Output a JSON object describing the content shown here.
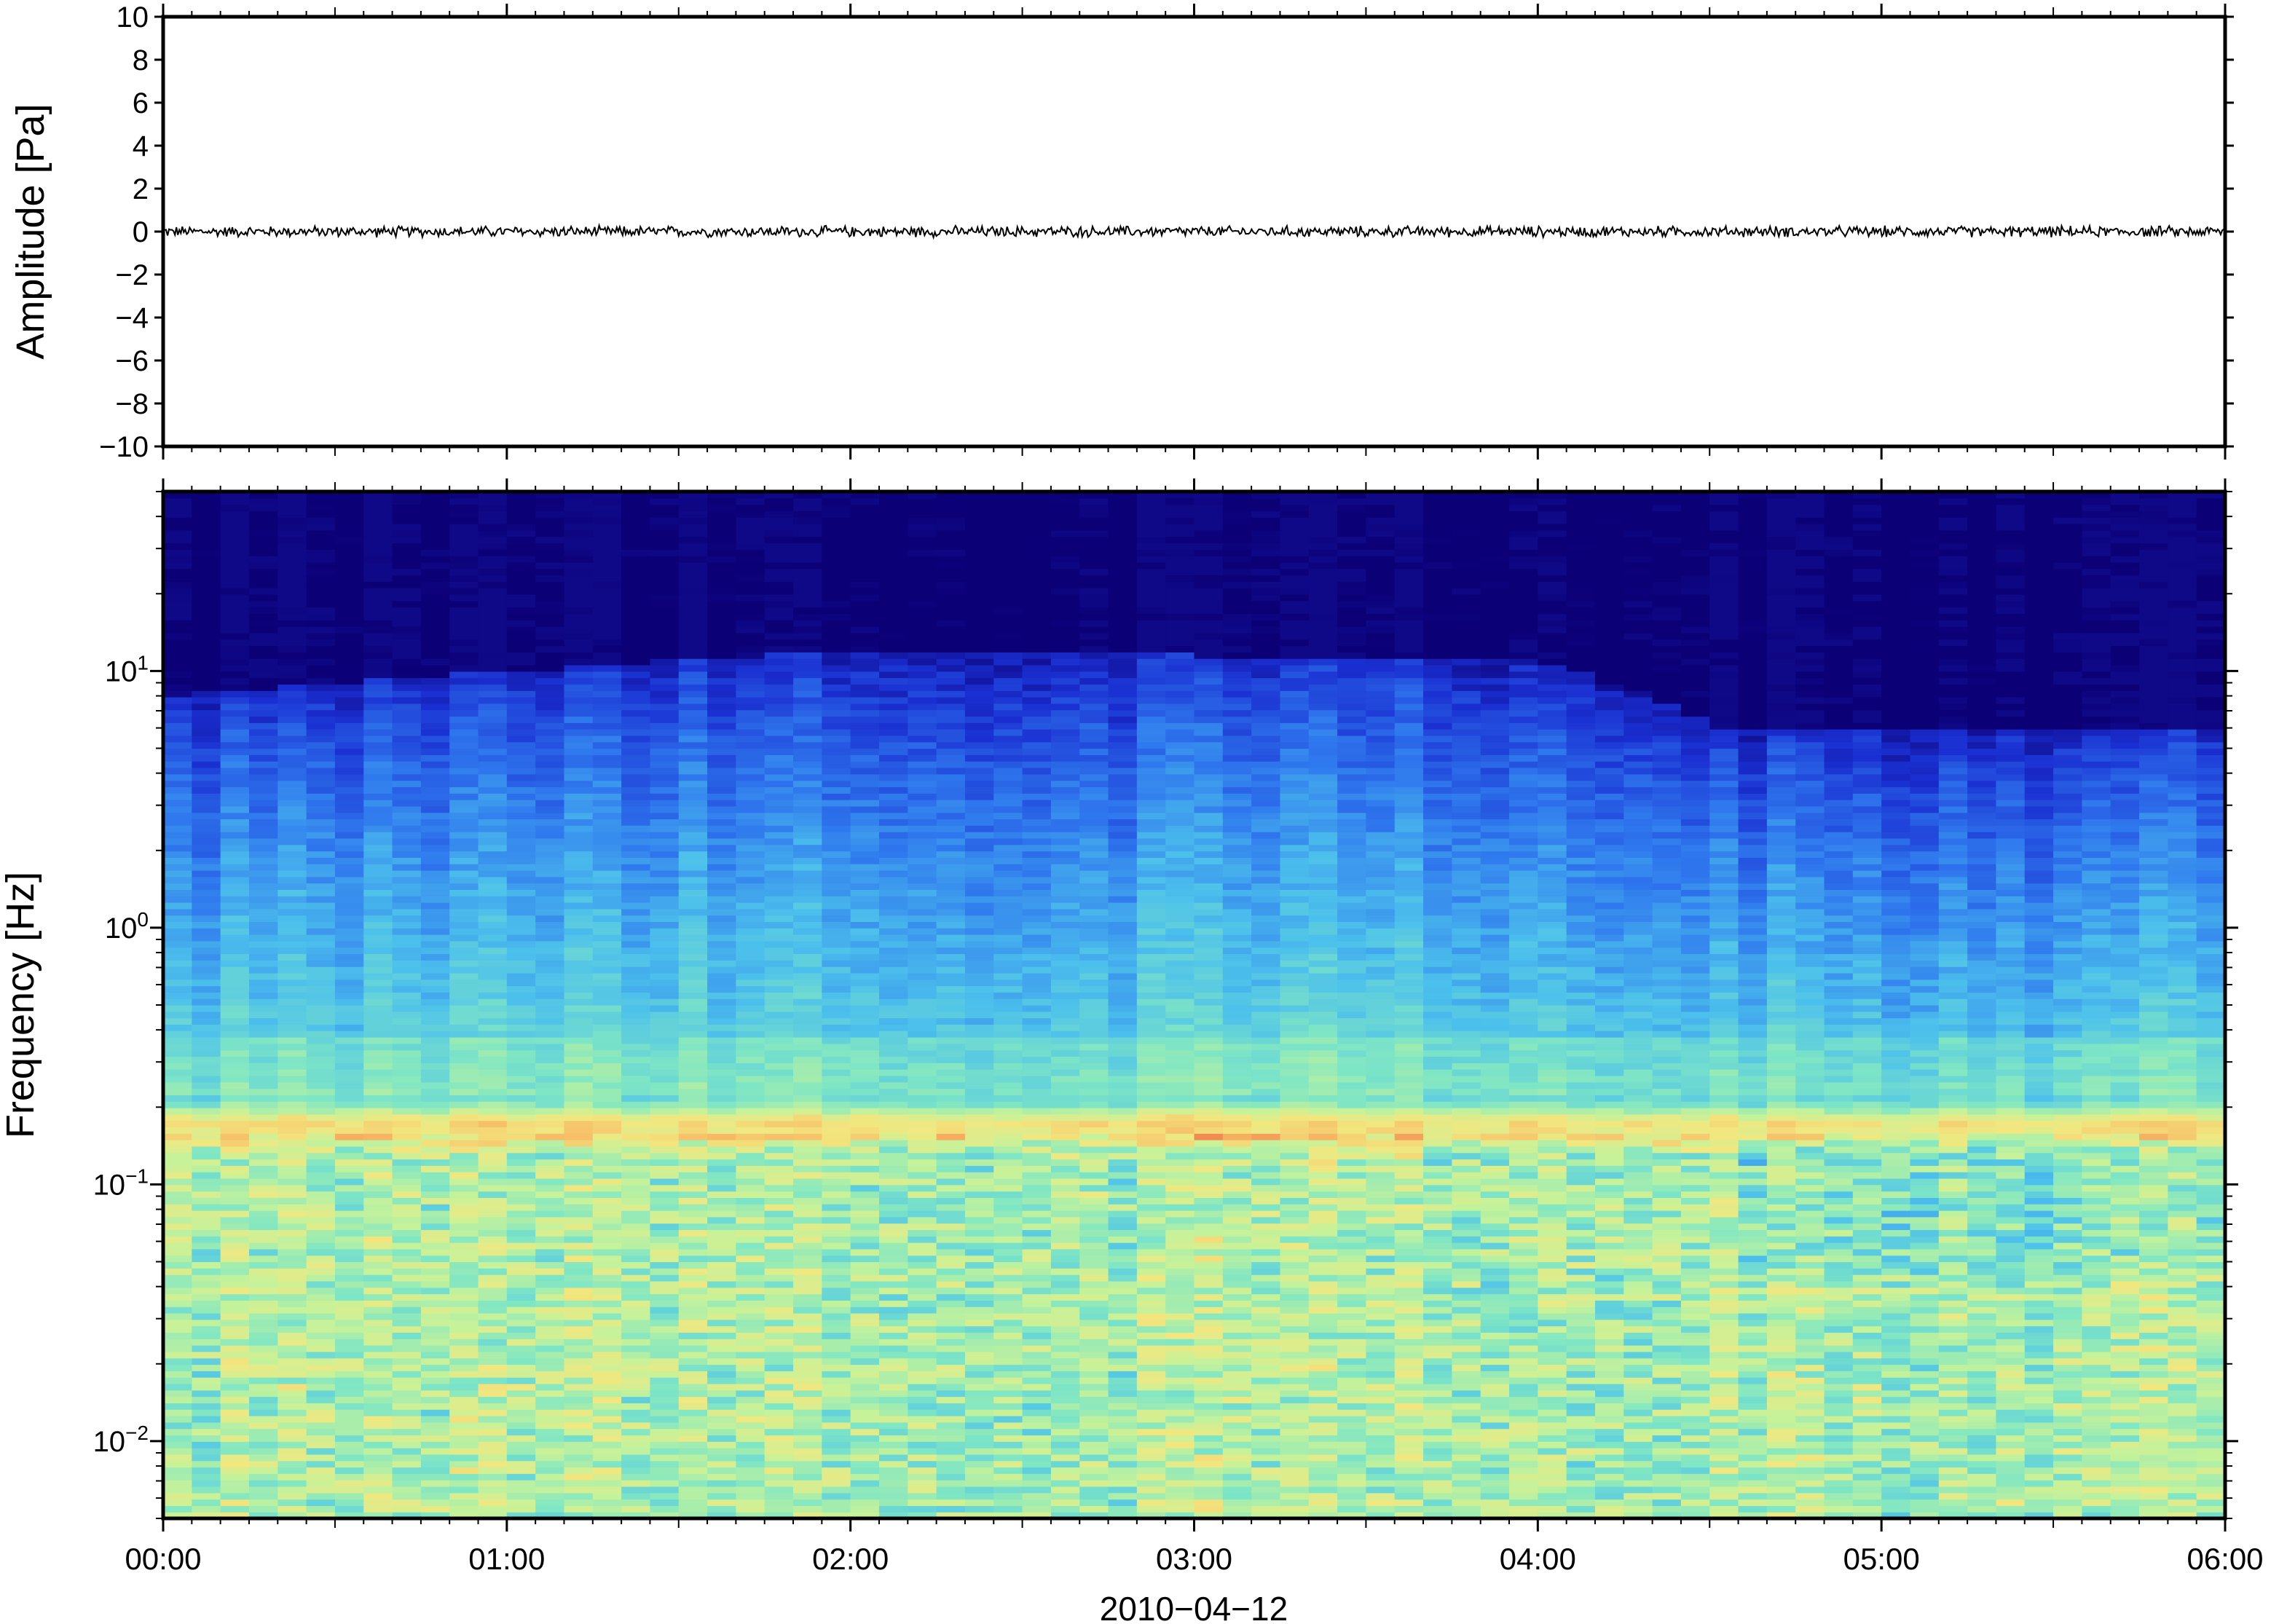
{
  "chart_data": [
    {
      "type": "line",
      "panel": "waveform",
      "ylabel": "Amplitude [Pa]",
      "ylim": [
        -10,
        10
      ],
      "yticks": [
        10,
        8,
        6,
        4,
        2,
        0,
        -2,
        -4,
        -6,
        -8,
        -10
      ],
      "ytick_labels": [
        "10",
        "8",
        "6",
        "4",
        "2",
        "0",
        "−2",
        "−4",
        "−6",
        "−8",
        "−10"
      ],
      "x_range_hours": [
        0,
        6
      ],
      "series": [
        {
          "values": {
            "mean": 0.0,
            "noise_amplitude_min": -0.3,
            "noise_amplitude_max": 0.3
          }
        }
      ],
      "line_color": "#000000"
    },
    {
      "type": "heatmap",
      "panel": "spectrogram",
      "ylabel": "Frequency [Hz]",
      "yscale": "log",
      "ylim": [
        0.005,
        50
      ],
      "yticks": [
        0.01,
        0.1,
        1,
        10
      ],
      "ytick_labels": [
        {
          "base": "10",
          "exp": "−2"
        },
        {
          "base": "10",
          "exp": "−1"
        },
        {
          "base": "10",
          "exp": "0"
        },
        {
          "base": "10",
          "exp": "1"
        }
      ],
      "xlabel": "2010−04−12",
      "xtick_labels": [
        "00:00",
        "01:00",
        "02:00",
        "03:00",
        "04:00",
        "05:00",
        "06:00"
      ],
      "x_range_hours": [
        0,
        6
      ],
      "colormap": [
        "#0c0077",
        "#1a2fd1",
        "#2f78ee",
        "#4cc0ec",
        "#7fe6c4",
        "#c6f29a",
        "#f2e77f",
        "#f7b764",
        "#ef7b4c",
        "#d83b2f"
      ],
      "microbarom_peak_hz": 0.17,
      "high_freq_cutoff_hz": {
        "00:00": 8,
        "02:00": 12,
        "04:00": 11,
        "04:33": 6,
        "06:00": 6
      }
    }
  ]
}
